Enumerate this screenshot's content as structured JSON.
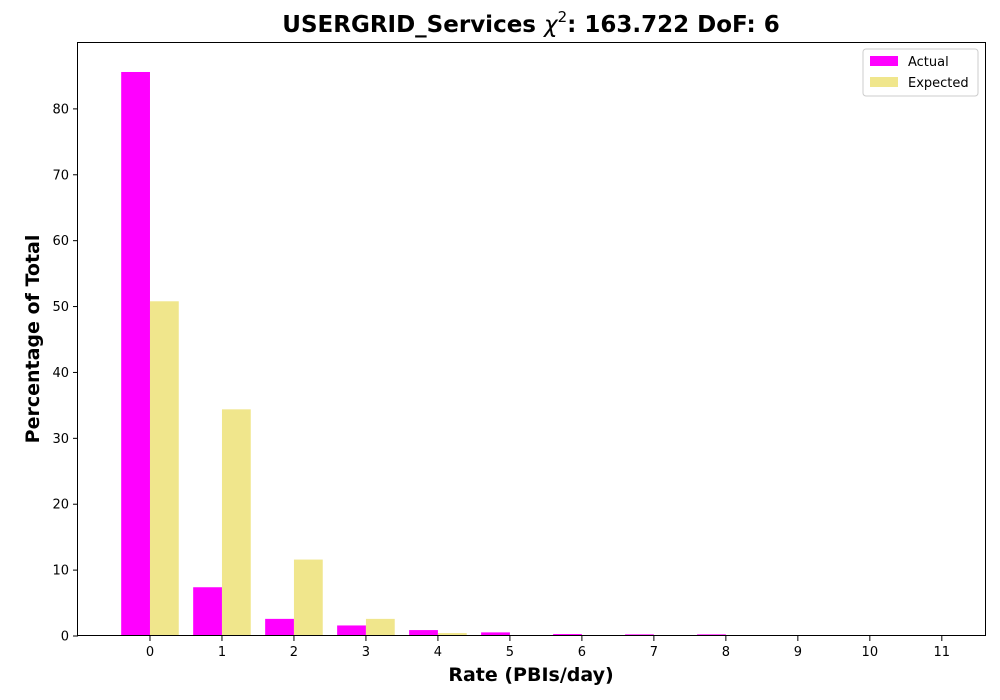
{
  "chart_data": {
    "type": "bar",
    "title": "USERGRID_Services",
    "title_stat_symbol": "χ",
    "title_stat_exponent": "2",
    "title_stat_rest": ": 163.722 DoF: 6",
    "xlabel": "Rate (PBIs/day)",
    "ylabel": "Percentage of Total",
    "categories": [
      "0",
      "1",
      "2",
      "3",
      "4",
      "5",
      "6",
      "7",
      "8",
      "9",
      "10",
      "11"
    ],
    "x_values": [
      0,
      1,
      2,
      3,
      4,
      5,
      6,
      7,
      8,
      9,
      10,
      11
    ],
    "xlim": [
      -1,
      11.6
    ],
    "ylim": [
      0,
      90
    ],
    "yticks": [
      0,
      10,
      20,
      30,
      40,
      50,
      60,
      70,
      80
    ],
    "grid": false,
    "legend_position": "top-right",
    "series": [
      {
        "name": "Actual",
        "color": "#ff00ff",
        "values": [
          85.6,
          7.4,
          2.6,
          1.6,
          0.9,
          0.55,
          0.3,
          0.25,
          0.25,
          0.15,
          0.12,
          0.12
        ]
      },
      {
        "name": "Expected",
        "color": "#f0e68c",
        "values": [
          50.8,
          34.4,
          11.6,
          2.6,
          0.45,
          0.06,
          0.01,
          0,
          0,
          0,
          0,
          0
        ]
      }
    ]
  }
}
